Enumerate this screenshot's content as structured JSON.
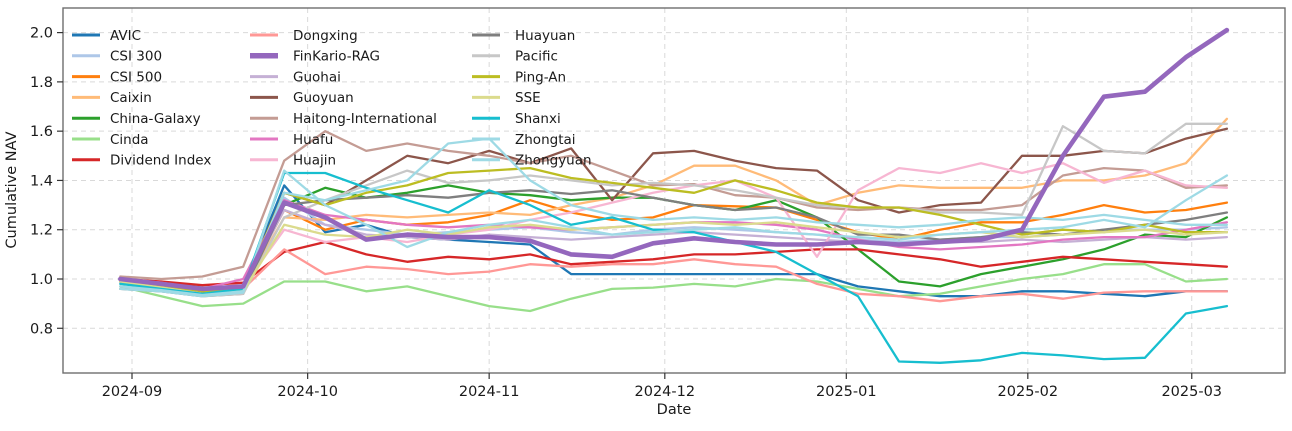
{
  "figure": {
    "background": "#ffffff"
  },
  "axes": {
    "xlabel": "Date",
    "ylabel": "Cumulative NAV",
    "yticks": [
      {
        "label": "0.8",
        "value": 0.8
      },
      {
        "label": "1.0",
        "value": 1.0
      },
      {
        "label": "1.2",
        "value": 1.2
      },
      {
        "label": "1.4",
        "value": 1.4
      },
      {
        "label": "1.6",
        "value": 1.6
      },
      {
        "label": "1.8",
        "value": 1.8
      },
      {
        "label": "2.0",
        "value": 2.0
      }
    ],
    "xticks": [
      {
        "label": "2024-09",
        "date": "2024-09-01"
      },
      {
        "label": "2024-10",
        "date": "2024-10-01"
      },
      {
        "label": "2024-11",
        "date": "2024-11-01"
      },
      {
        "label": "2024-12",
        "date": "2024-12-01"
      },
      {
        "label": "2025-01",
        "date": "2025-01-01"
      },
      {
        "label": "2025-02",
        "date": "2025-02-01"
      },
      {
        "label": "2025-03",
        "date": "2025-03-01"
      }
    ],
    "grid": "dashed",
    "grid_color": "#d9d9d9",
    "spine_color": "#6e6e6e"
  },
  "chart_data": {
    "type": "line",
    "title": "",
    "xlabel": "Date",
    "ylabel": "Cumulative NAV",
    "ylim": [
      0.62,
      2.1
    ],
    "x_range": [
      "2024-08-30",
      "2025-03-07"
    ],
    "legend": {
      "visible": true,
      "position": "upper left",
      "columns": 3
    },
    "emphasized_series": "FinKario-RAG",
    "x": [
      "2024-08-30",
      "2024-09-06",
      "2024-09-13",
      "2024-09-20",
      "2024-09-27",
      "2024-10-04",
      "2024-10-11",
      "2024-10-18",
      "2024-10-25",
      "2024-11-01",
      "2024-11-08",
      "2024-11-15",
      "2024-11-22",
      "2024-11-29",
      "2024-12-06",
      "2024-12-13",
      "2024-12-20",
      "2024-12-27",
      "2025-01-03",
      "2025-01-10",
      "2025-01-17",
      "2025-01-24",
      "2025-01-31",
      "2025-02-07",
      "2025-02-14",
      "2025-02-21",
      "2025-02-28",
      "2025-03-07"
    ],
    "series": [
      {
        "name": "AVIC",
        "color": "#1f77b4",
        "emphasis": false,
        "values": [
          1.0,
          0.985,
          0.965,
          0.97,
          1.38,
          1.19,
          1.22,
          1.17,
          1.16,
          1.15,
          1.14,
          1.02,
          1.02,
          1.02,
          1.02,
          1.02,
          1.02,
          1.02,
          0.97,
          0.95,
          0.93,
          0.93,
          0.95,
          0.95,
          0.94,
          0.93,
          0.95,
          0.95
        ]
      },
      {
        "name": "CSI 300",
        "color": "#aec7e8",
        "emphasis": false,
        "values": [
          1.0,
          0.98,
          0.955,
          0.965,
          1.33,
          1.22,
          1.2,
          1.18,
          1.19,
          1.2,
          1.21,
          1.19,
          1.18,
          1.2,
          1.21,
          1.2,
          1.19,
          1.18,
          1.16,
          1.15,
          1.16,
          1.17,
          1.17,
          1.18,
          1.2,
          1.2,
          1.2,
          1.21
        ]
      },
      {
        "name": "CSI 500",
        "color": "#ff7f0e",
        "emphasis": false,
        "values": [
          1.0,
          0.98,
          0.955,
          0.965,
          1.28,
          1.2,
          1.24,
          1.22,
          1.23,
          1.26,
          1.32,
          1.27,
          1.24,
          1.25,
          1.3,
          1.295,
          1.29,
          1.24,
          1.19,
          1.16,
          1.2,
          1.23,
          1.23,
          1.26,
          1.3,
          1.27,
          1.28,
          1.31
        ]
      },
      {
        "name": "Caixin",
        "color": "#ffbb78",
        "emphasis": false,
        "values": [
          1.0,
          0.975,
          0.95,
          0.96,
          1.25,
          1.24,
          1.26,
          1.25,
          1.26,
          1.27,
          1.26,
          1.3,
          1.33,
          1.38,
          1.46,
          1.46,
          1.4,
          1.3,
          1.35,
          1.38,
          1.37,
          1.37,
          1.37,
          1.4,
          1.4,
          1.42,
          1.47,
          1.65
        ]
      },
      {
        "name": "China-Galaxy",
        "color": "#2ca02c",
        "emphasis": false,
        "values": [
          0.99,
          0.97,
          0.94,
          0.95,
          1.3,
          1.37,
          1.33,
          1.35,
          1.38,
          1.35,
          1.34,
          1.32,
          1.33,
          1.33,
          1.3,
          1.28,
          1.32,
          1.25,
          1.12,
          0.99,
          0.97,
          1.02,
          1.05,
          1.08,
          1.12,
          1.18,
          1.17,
          1.25
        ]
      },
      {
        "name": "Cinda",
        "color": "#98df8a",
        "emphasis": false,
        "values": [
          0.97,
          0.93,
          0.89,
          0.9,
          0.99,
          0.99,
          0.95,
          0.97,
          0.93,
          0.89,
          0.87,
          0.92,
          0.96,
          0.965,
          0.98,
          0.97,
          1.0,
          0.99,
          0.96,
          0.93,
          0.94,
          0.97,
          1.0,
          1.02,
          1.06,
          1.06,
          0.99,
          1.0
        ]
      },
      {
        "name": "Dividend Index",
        "color": "#d62728",
        "emphasis": false,
        "values": [
          1.0,
          0.99,
          0.975,
          0.985,
          1.11,
          1.15,
          1.1,
          1.07,
          1.09,
          1.08,
          1.1,
          1.06,
          1.07,
          1.08,
          1.1,
          1.1,
          1.11,
          1.12,
          1.12,
          1.1,
          1.08,
          1.05,
          1.07,
          1.09,
          1.08,
          1.07,
          1.06,
          1.05
        ]
      },
      {
        "name": "Dongxing",
        "color": "#ff9896",
        "emphasis": false,
        "values": [
          1.0,
          0.97,
          0.945,
          0.96,
          1.12,
          1.02,
          1.05,
          1.04,
          1.02,
          1.03,
          1.06,
          1.05,
          1.06,
          1.06,
          1.08,
          1.06,
          1.05,
          0.98,
          0.94,
          0.93,
          0.91,
          0.93,
          0.94,
          0.92,
          0.945,
          0.95,
          0.95,
          0.95
        ]
      },
      {
        "name": "FinKario-RAG",
        "color": "#9467bd",
        "emphasis": true,
        "values": [
          1.0,
          0.98,
          0.96,
          0.97,
          1.31,
          1.25,
          1.16,
          1.18,
          1.17,
          1.17,
          1.155,
          1.1,
          1.09,
          1.145,
          1.165,
          1.15,
          1.14,
          1.14,
          1.15,
          1.14,
          1.15,
          1.16,
          1.2,
          1.5,
          1.74,
          1.76,
          1.9,
          2.01
        ]
      },
      {
        "name": "Guohai",
        "color": "#c5b0d5",
        "emphasis": false,
        "values": [
          0.985,
          0.97,
          0.95,
          0.96,
          1.28,
          1.22,
          1.18,
          1.17,
          1.16,
          1.18,
          1.17,
          1.16,
          1.17,
          1.18,
          1.19,
          1.18,
          1.17,
          1.16,
          1.15,
          1.14,
          1.15,
          1.15,
          1.16,
          1.15,
          1.16,
          1.17,
          1.16,
          1.17
        ]
      },
      {
        "name": "Guoyuan",
        "color": "#8c564b",
        "emphasis": false,
        "values": [
          1.0,
          0.98,
          0.95,
          0.97,
          1.35,
          1.3,
          1.4,
          1.5,
          1.47,
          1.52,
          1.47,
          1.53,
          1.32,
          1.51,
          1.52,
          1.48,
          1.45,
          1.44,
          1.32,
          1.27,
          1.3,
          1.31,
          1.5,
          1.5,
          1.52,
          1.51,
          1.57,
          1.61
        ]
      },
      {
        "name": "Haitong-International",
        "color": "#c49c94",
        "emphasis": false,
        "values": [
          1.01,
          1.0,
          1.01,
          1.05,
          1.48,
          1.6,
          1.52,
          1.55,
          1.52,
          1.5,
          1.47,
          1.5,
          1.44,
          1.38,
          1.385,
          1.34,
          1.33,
          1.29,
          1.28,
          1.29,
          1.28,
          1.28,
          1.3,
          1.42,
          1.45,
          1.44,
          1.37,
          1.38
        ]
      },
      {
        "name": "Huafu",
        "color": "#e377c2",
        "emphasis": false,
        "values": [
          1.0,
          0.985,
          0.96,
          1.0,
          1.32,
          1.26,
          1.24,
          1.22,
          1.21,
          1.22,
          1.21,
          1.2,
          1.21,
          1.22,
          1.23,
          1.23,
          1.22,
          1.2,
          1.16,
          1.13,
          1.12,
          1.13,
          1.14,
          1.16,
          1.17,
          1.17,
          1.2,
          1.23
        ]
      },
      {
        "name": "Huajin",
        "color": "#f7b6d2",
        "emphasis": false,
        "values": [
          0.995,
          0.98,
          0.955,
          0.97,
          1.2,
          1.15,
          1.17,
          1.15,
          1.18,
          1.2,
          1.24,
          1.27,
          1.31,
          1.35,
          1.38,
          1.4,
          1.33,
          1.09,
          1.36,
          1.45,
          1.43,
          1.47,
          1.43,
          1.47,
          1.39,
          1.44,
          1.38,
          1.37
        ]
      },
      {
        "name": "Huayuan",
        "color": "#7f7f7f",
        "emphasis": false,
        "values": [
          0.96,
          0.95,
          0.93,
          0.94,
          1.3,
          1.32,
          1.33,
          1.34,
          1.33,
          1.35,
          1.36,
          1.345,
          1.36,
          1.33,
          1.3,
          1.28,
          1.29,
          1.25,
          1.18,
          1.18,
          1.16,
          1.17,
          1.19,
          1.18,
          1.2,
          1.22,
          1.24,
          1.27
        ]
      },
      {
        "name": "Pacific",
        "color": "#c7c7c7",
        "emphasis": false,
        "values": [
          0.97,
          0.955,
          0.93,
          0.94,
          1.25,
          1.32,
          1.38,
          1.44,
          1.39,
          1.4,
          1.42,
          1.4,
          1.38,
          1.39,
          1.38,
          1.36,
          1.33,
          1.3,
          1.29,
          1.29,
          1.27,
          1.27,
          1.26,
          1.62,
          1.52,
          1.51,
          1.63,
          1.63
        ]
      },
      {
        "name": "Ping-An",
        "color": "#bcbd22",
        "emphasis": false,
        "values": [
          0.99,
          0.975,
          0.95,
          0.96,
          1.35,
          1.3,
          1.35,
          1.38,
          1.43,
          1.44,
          1.45,
          1.41,
          1.39,
          1.37,
          1.35,
          1.4,
          1.36,
          1.31,
          1.29,
          1.29,
          1.26,
          1.22,
          1.18,
          1.2,
          1.19,
          1.22,
          1.19,
          1.19
        ]
      },
      {
        "name": "SSE",
        "color": "#dbdb8d",
        "emphasis": false,
        "values": [
          0.99,
          0.965,
          0.94,
          0.95,
          1.22,
          1.18,
          1.17,
          1.2,
          1.18,
          1.21,
          1.22,
          1.2,
          1.21,
          1.22,
          1.23,
          1.22,
          1.23,
          1.21,
          1.19,
          1.17,
          1.18,
          1.19,
          1.17,
          1.18,
          1.19,
          1.2,
          1.18,
          1.19
        ]
      },
      {
        "name": "Shanxi",
        "color": "#17becf",
        "emphasis": false,
        "values": [
          0.98,
          0.96,
          0.94,
          0.96,
          1.43,
          1.43,
          1.37,
          1.32,
          1.27,
          1.36,
          1.3,
          1.22,
          1.25,
          1.2,
          1.19,
          1.15,
          1.11,
          1.02,
          0.93,
          0.665,
          0.66,
          0.67,
          0.7,
          0.69,
          0.675,
          0.68,
          0.86,
          0.89
        ]
      },
      {
        "name": "Zhongtai",
        "color": "#9edae5",
        "emphasis": false,
        "values": [
          0.97,
          0.955,
          0.935,
          0.95,
          1.35,
          1.32,
          1.36,
          1.4,
          1.55,
          1.57,
          1.4,
          1.3,
          1.26,
          1.24,
          1.25,
          1.24,
          1.25,
          1.23,
          1.22,
          1.21,
          1.22,
          1.24,
          1.25,
          1.24,
          1.26,
          1.24,
          1.22,
          1.22
        ]
      },
      {
        "name": "Zhongyuan",
        "color": "#9edae5",
        "emphasis": false,
        "values": [
          0.96,
          0.95,
          0.93,
          0.945,
          1.44,
          1.3,
          1.22,
          1.13,
          1.19,
          1.22,
          1.24,
          1.21,
          1.18,
          1.19,
          1.2,
          1.21,
          1.19,
          1.18,
          1.17,
          1.16,
          1.18,
          1.19,
          1.2,
          1.21,
          1.24,
          1.21,
          1.32,
          1.42
        ]
      }
    ]
  }
}
